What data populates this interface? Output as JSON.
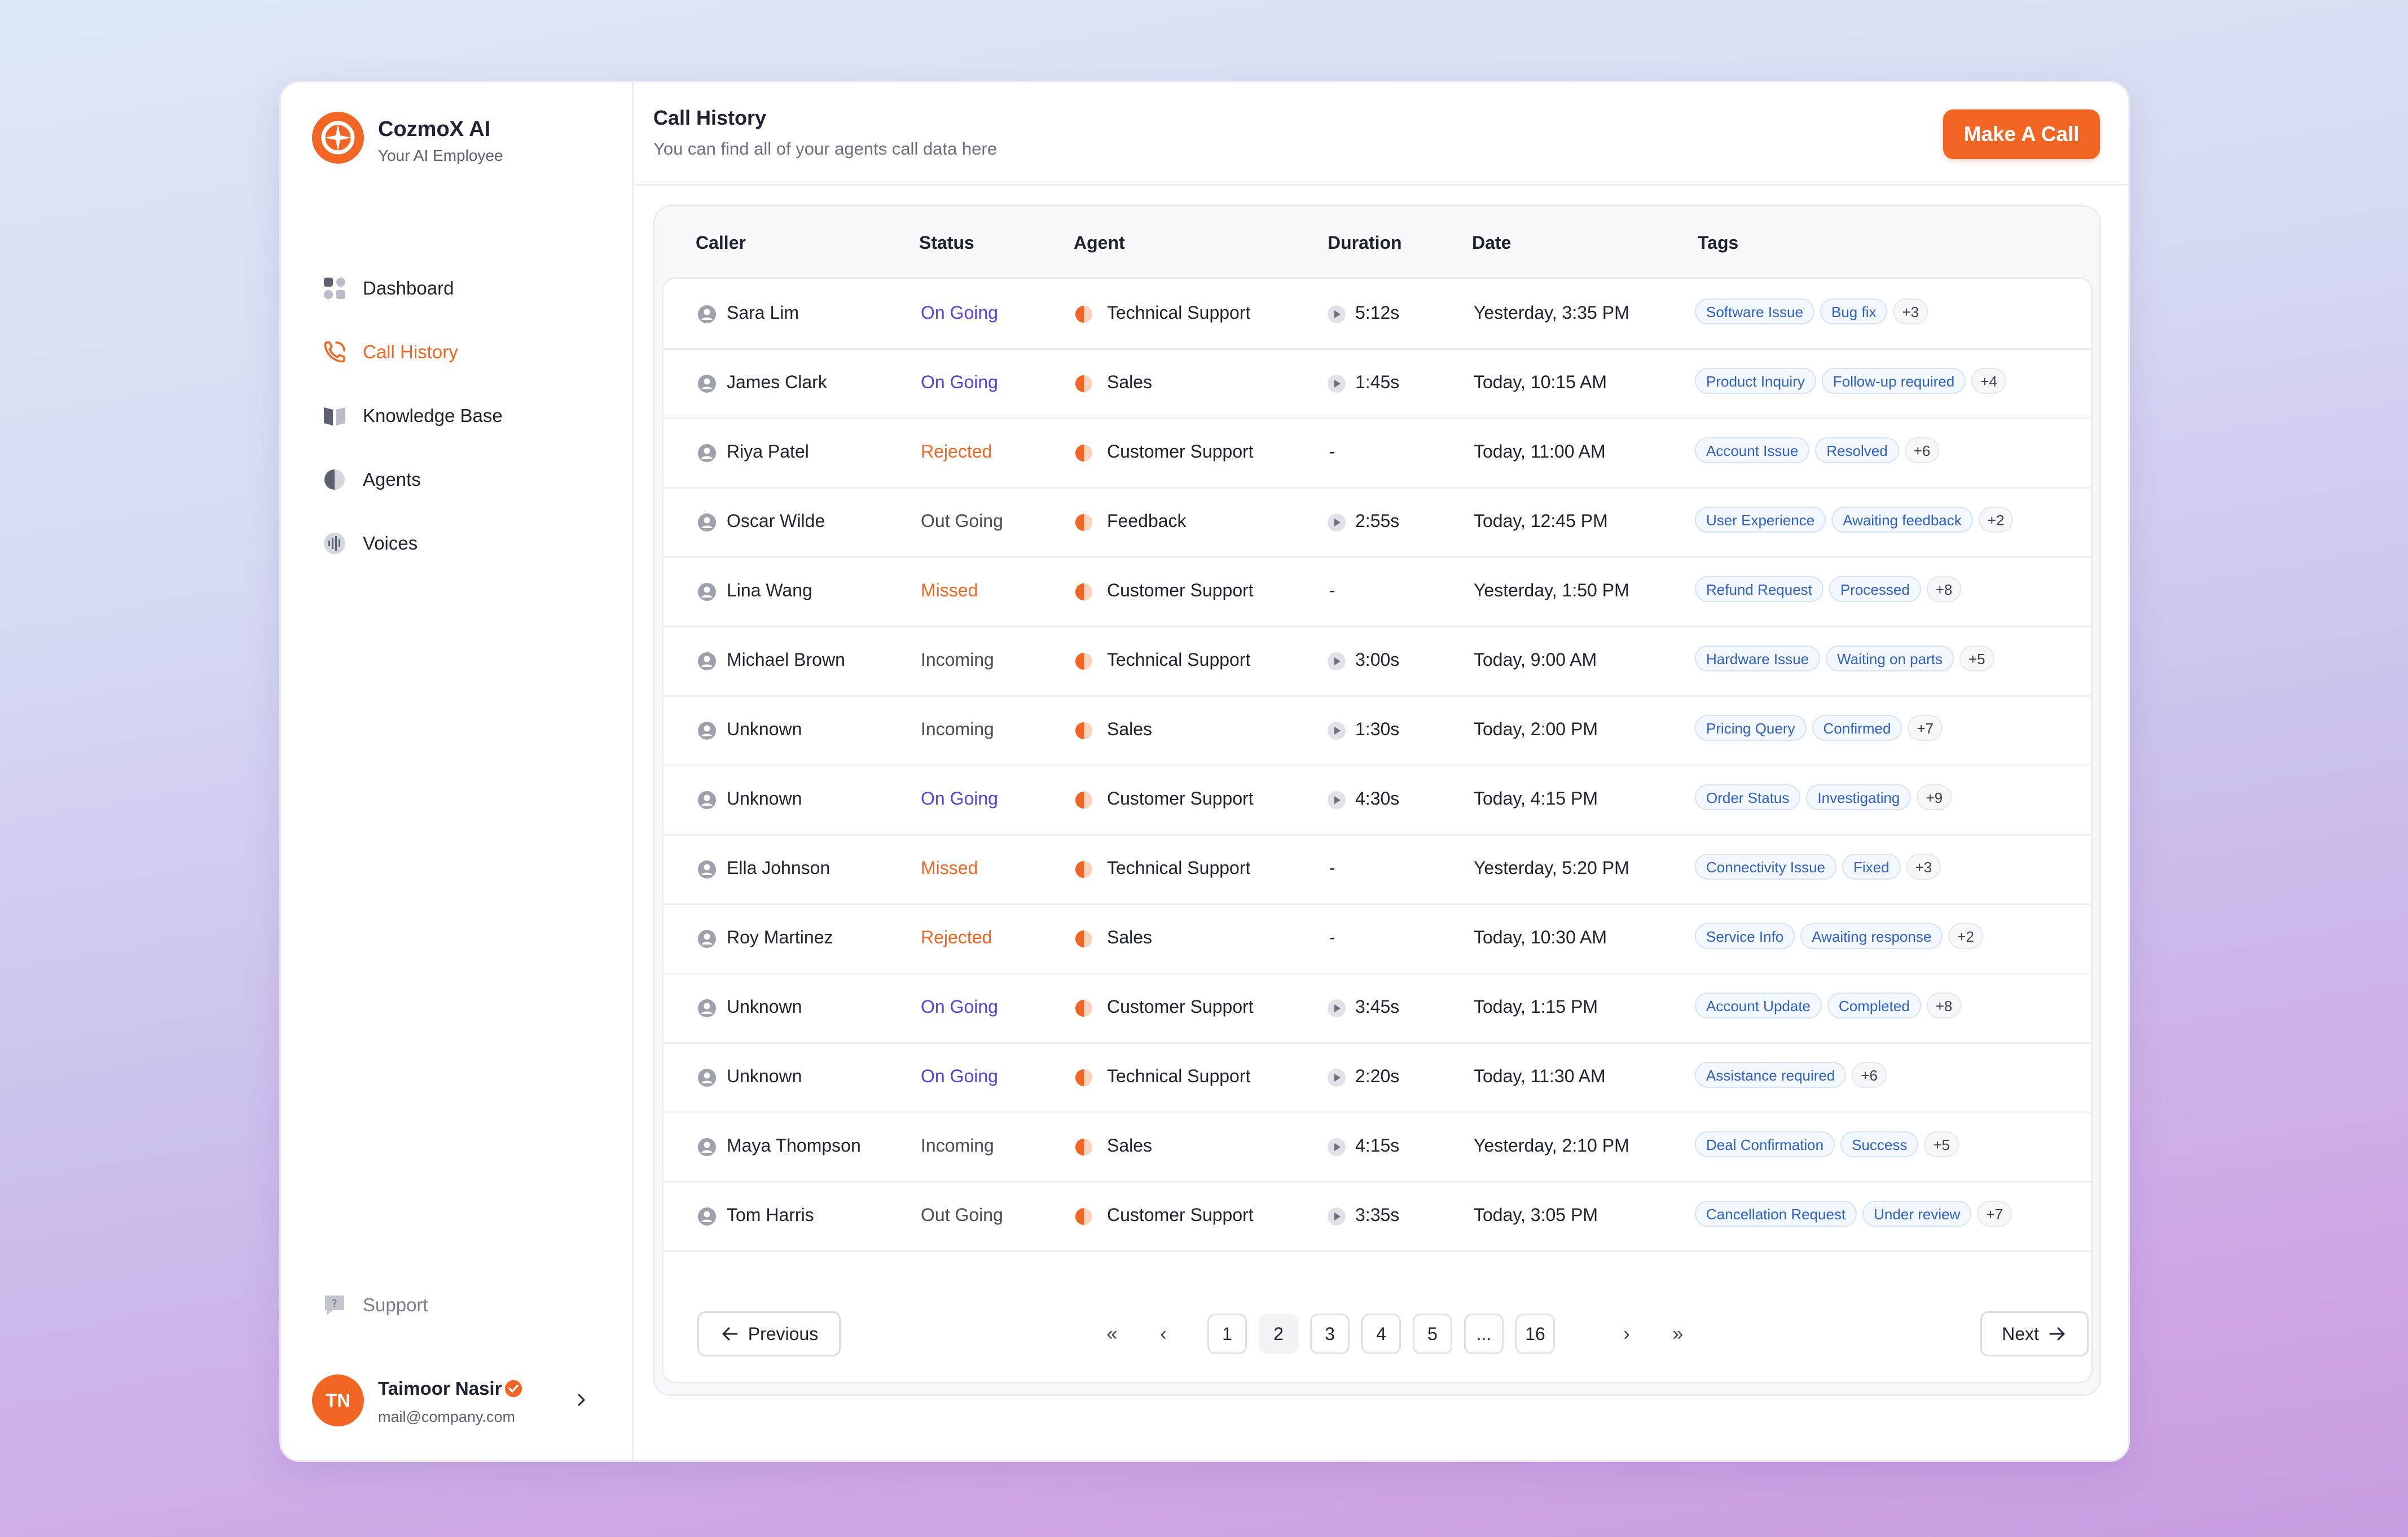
{
  "brand": {
    "name": "CozmoX AI",
    "tagline": "Your AI Employee"
  },
  "nav": [
    {
      "label": "Dashboard",
      "icon": "dashboard-icon"
    },
    {
      "label": "Call History",
      "icon": "phone-icon",
      "active": true
    },
    {
      "label": "Knowledge Base",
      "icon": "book-icon"
    },
    {
      "label": "Agents",
      "icon": "agent-icon"
    },
    {
      "label": "Voices",
      "icon": "waveform-icon"
    }
  ],
  "support": {
    "label": "Support"
  },
  "user": {
    "initials": "TN",
    "name": "Taimoor Nasir",
    "email": "mail@company.com"
  },
  "header": {
    "title": "Call History",
    "subtitle": "You can find all of your agents call data here",
    "cta_label": "Make A Call"
  },
  "table": {
    "columns": [
      "Caller",
      "Status",
      "Agent",
      "Duration",
      "Date",
      "Tags"
    ],
    "rows": [
      {
        "caller": "Sara Lim",
        "status": "On Going",
        "agent": "Technical Support",
        "duration": "5:12s",
        "date": "Yesterday, 3:35 PM",
        "tags": [
          "Software Issue",
          "Bug fix"
        ],
        "more": "+3"
      },
      {
        "caller": "James Clark",
        "status": "On Going",
        "agent": "Sales",
        "duration": "1:45s",
        "date": "Today, 10:15 AM",
        "tags": [
          "Product Inquiry",
          "Follow-up required"
        ],
        "more": "+4"
      },
      {
        "caller": "Riya Patel",
        "status": "Rejected",
        "agent": "Customer Support",
        "duration": "-",
        "date": "Today, 11:00 AM",
        "tags": [
          "Account Issue",
          "Resolved"
        ],
        "more": "+6"
      },
      {
        "caller": "Oscar Wilde",
        "status": "Out Going",
        "agent": "Feedback",
        "duration": "2:55s",
        "date": "Today, 12:45 PM",
        "tags": [
          "User Experience",
          "Awaiting feedback"
        ],
        "more": "+2"
      },
      {
        "caller": "Lina Wang",
        "status": "Missed",
        "agent": "Customer Support",
        "duration": "-",
        "date": "Yesterday, 1:50 PM",
        "tags": [
          "Refund Request",
          "Processed"
        ],
        "more": "+8"
      },
      {
        "caller": "Michael Brown",
        "status": "Incoming",
        "agent": "Technical Support",
        "duration": "3:00s",
        "date": "Today, 9:00 AM",
        "tags": [
          "Hardware Issue",
          "Waiting on parts"
        ],
        "more": "+5"
      },
      {
        "caller": "Unknown",
        "status": "Incoming",
        "agent": "Sales",
        "duration": "1:30s",
        "date": "Today, 2:00 PM",
        "tags": [
          "Pricing Query",
          "Confirmed"
        ],
        "more": "+7"
      },
      {
        "caller": "Unknown",
        "status": "On Going",
        "agent": "Customer Support",
        "duration": "4:30s",
        "date": "Today, 4:15 PM",
        "tags": [
          "Order Status",
          "Investigating"
        ],
        "more": "+9"
      },
      {
        "caller": "Ella Johnson",
        "status": "Missed",
        "agent": "Technical Support",
        "duration": "-",
        "date": "Yesterday, 5:20 PM",
        "tags": [
          "Connectivity Issue",
          "Fixed"
        ],
        "more": "+3"
      },
      {
        "caller": "Roy Martinez",
        "status": "Rejected",
        "agent": "Sales",
        "duration": "-",
        "date": "Today, 10:30 AM",
        "tags": [
          "Service Info",
          "Awaiting response"
        ],
        "more": "+2"
      },
      {
        "caller": "Unknown",
        "status": "On Going",
        "agent": "Customer Support",
        "duration": "3:45s",
        "date": "Today, 1:15 PM",
        "tags": [
          "Account Update",
          "Completed"
        ],
        "more": "+8"
      },
      {
        "caller": "Unknown",
        "status": "On Going",
        "agent": "Technical Support",
        "duration": "2:20s",
        "date": "Today, 11:30 AM",
        "tags": [
          "Assistance required"
        ],
        "more": "+6"
      },
      {
        "caller": "Maya Thompson",
        "status": "Incoming",
        "agent": "Sales",
        "duration": "4:15s",
        "date": "Yesterday, 2:10 PM",
        "tags": [
          "Deal Confirmation",
          "Success"
        ],
        "more": "+5"
      },
      {
        "caller": "Tom Harris",
        "status": "Out Going",
        "agent": "Customer Support",
        "duration": "3:35s",
        "date": "Today, 3:05 PM",
        "tags": [
          "Cancellation Request",
          "Under review"
        ],
        "more": "+7"
      }
    ]
  },
  "status_colors": {
    "On Going": "#5b3fe0",
    "Rejected": "#f26522",
    "Missed": "#f26522",
    "Out Going": "#4a4d5a",
    "Incoming": "#4a4d5a"
  },
  "pagination": {
    "previous_label": "Previous",
    "next_label": "Next",
    "pages": [
      "1",
      "2",
      "3",
      "4",
      "5",
      "...",
      "16"
    ],
    "current": "2"
  },
  "colors": {
    "accent": "#f26522",
    "ongoing": "#5b3fe0",
    "tag_text": "#2d60c8"
  }
}
